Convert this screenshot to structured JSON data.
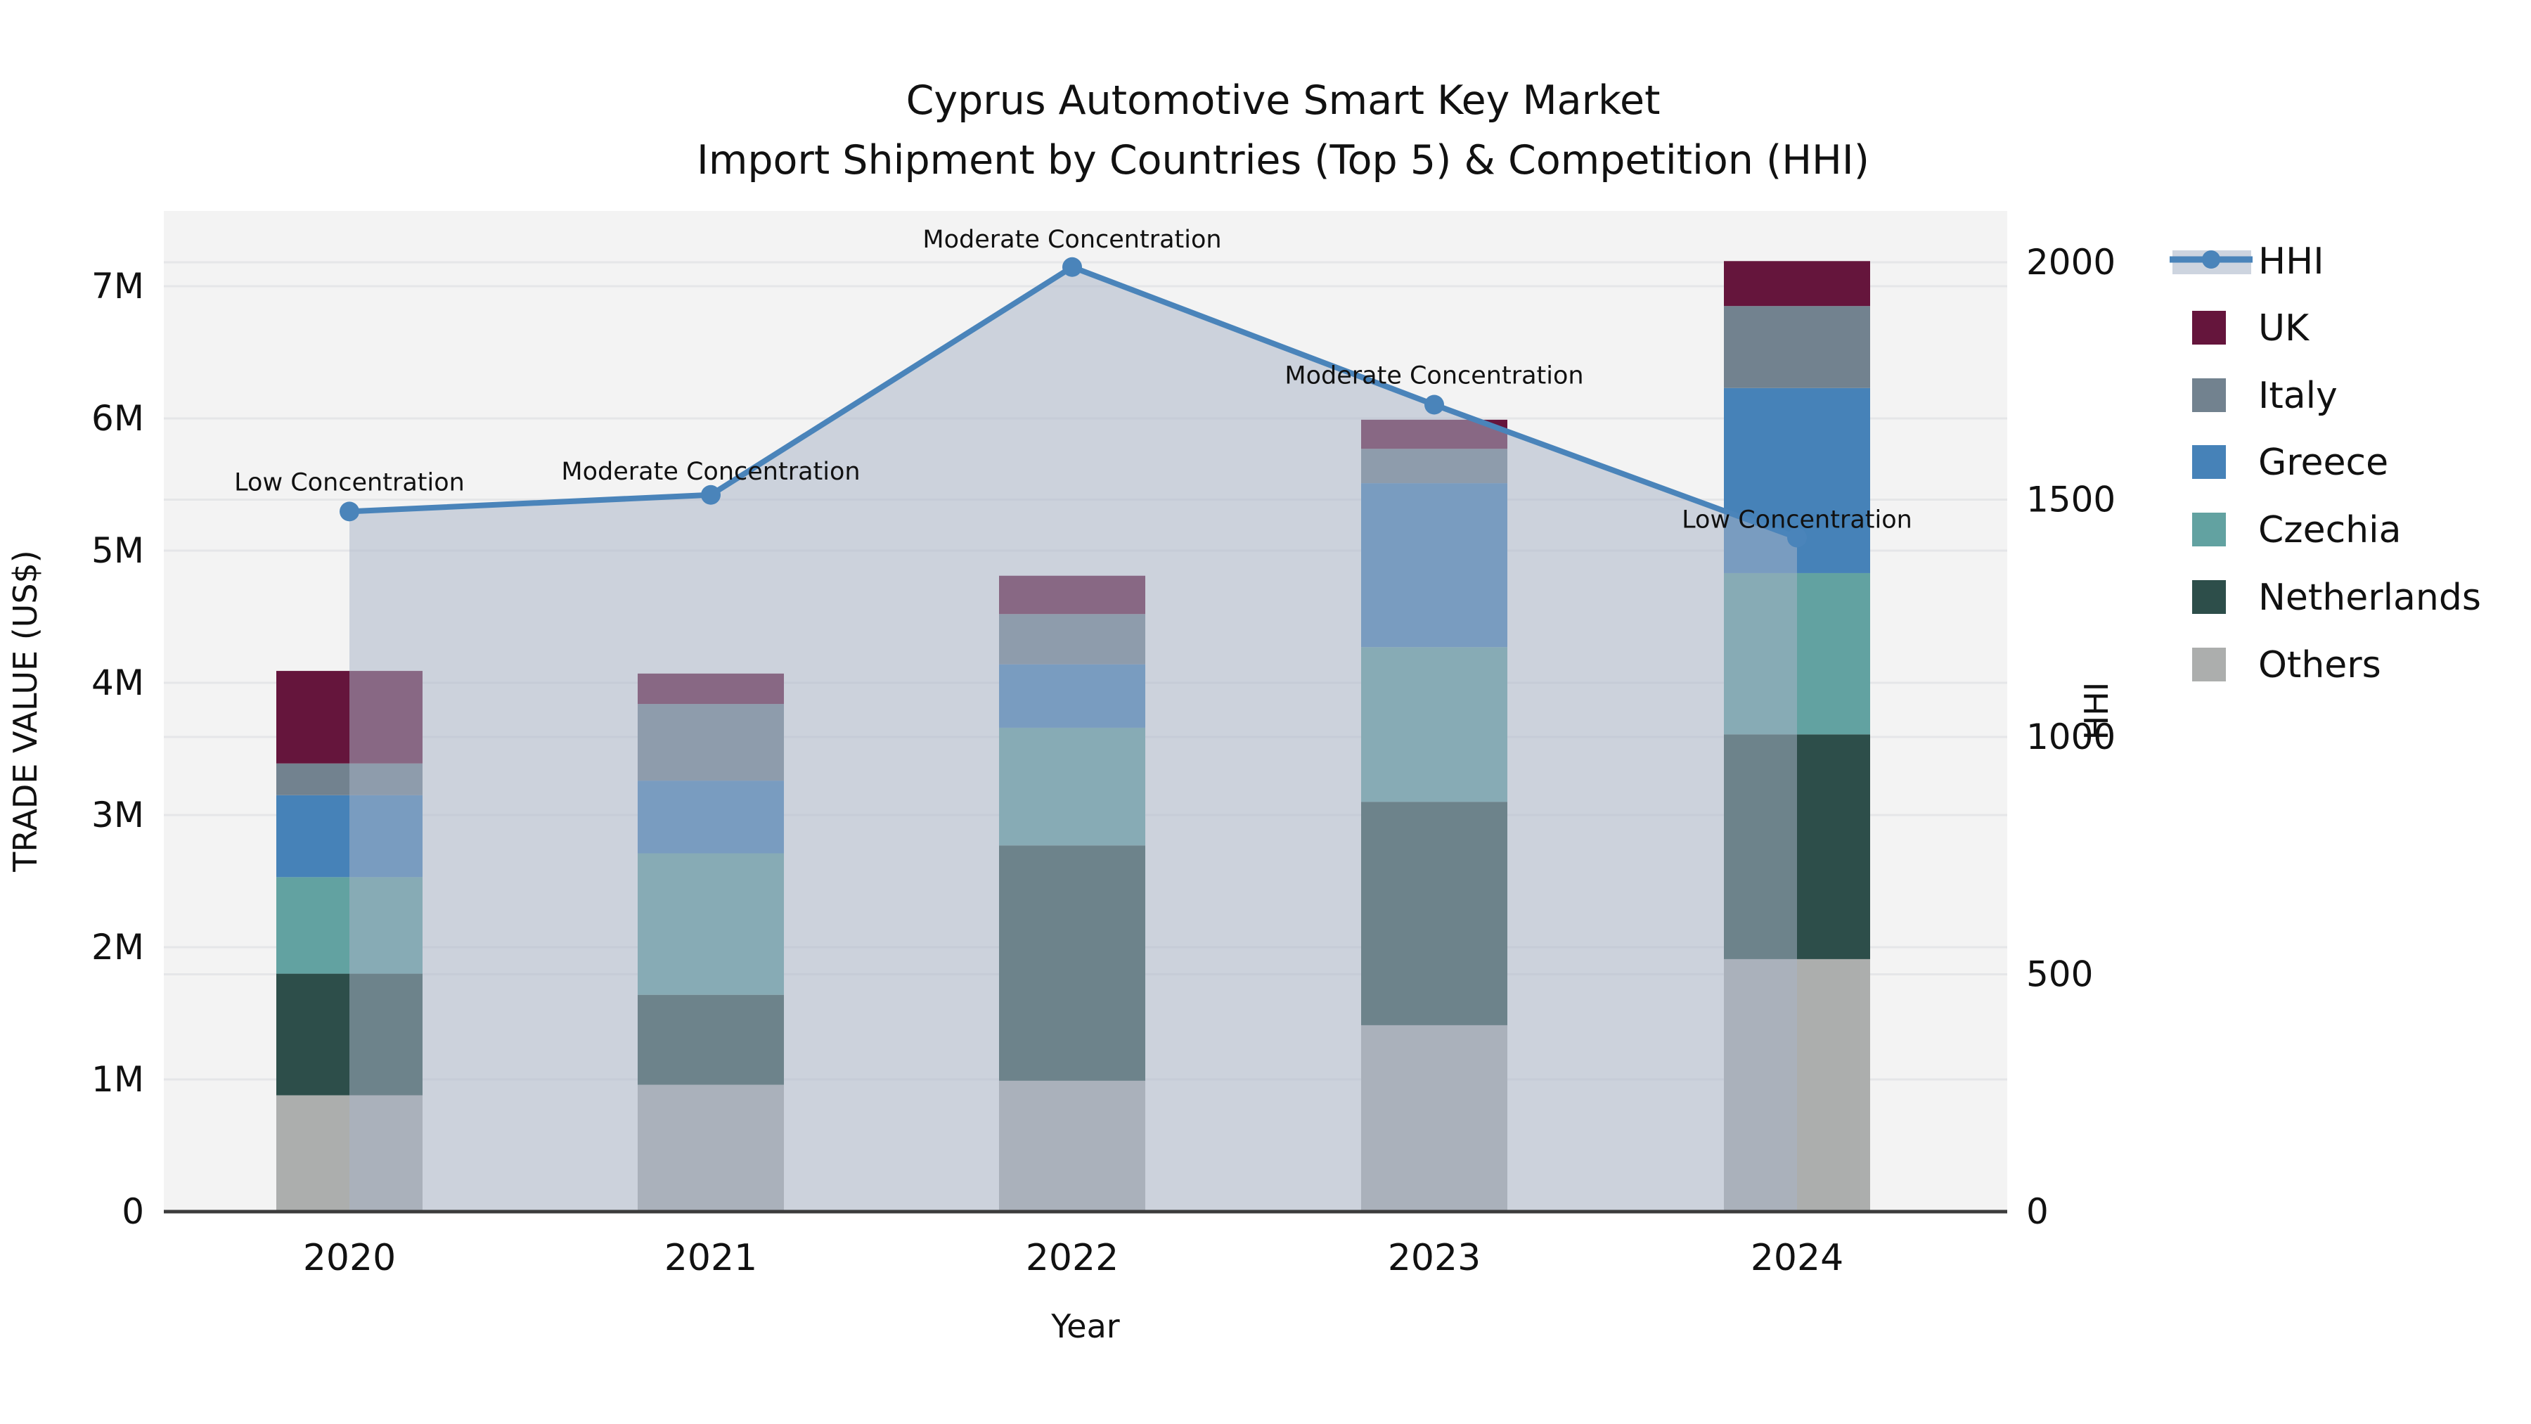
{
  "chart_data": {
    "type": "composed-stacked-bar-and-line",
    "title_line1": "Cyprus Automotive Smart Key Market",
    "title_line2": "Import Shipment by Countries (Top 5) & Competition (HHI)",
    "x_axis": {
      "label": "Year",
      "categories": [
        "2020",
        "2021",
        "2022",
        "2023",
        "2024"
      ]
    },
    "y_left": {
      "label": "TRADE VALUE (US$)",
      "ticks": [
        "0",
        "1M",
        "2M",
        "3M",
        "4M",
        "5M",
        "6M",
        "7M"
      ],
      "units": "millions of US$",
      "ylim": [
        0,
        7.57
      ],
      "grid": true
    },
    "y_right": {
      "label": "HHI",
      "ticks": [
        "0",
        "500",
        "1000",
        "1500",
        "2000"
      ],
      "tick_step": 500,
      "ylim": [
        0,
        2108
      ],
      "grid": true
    },
    "bars": {
      "type": "stacked-bar",
      "stack_order_bottom_to_top": [
        "Others",
        "Netherlands",
        "Czechia",
        "Greece",
        "Italy",
        "UK"
      ],
      "values_unit": "millions of US$",
      "series": [
        {
          "name": "UK",
          "color": "#65153c",
          "values": [
            0.7,
            0.23,
            0.29,
            0.22,
            0.34
          ]
        },
        {
          "name": "Italy",
          "color": "#72828f",
          "values": [
            0.24,
            0.58,
            0.38,
            0.26,
            0.62
          ]
        },
        {
          "name": "Greece",
          "color": "#4682b8",
          "values": [
            0.62,
            0.55,
            0.48,
            1.24,
            1.4
          ]
        },
        {
          "name": "Czechia",
          "color": "#62a2a1",
          "values": [
            0.73,
            1.07,
            0.89,
            1.17,
            1.22
          ]
        },
        {
          "name": "Netherlands",
          "color": "#2d4e4a",
          "values": [
            0.92,
            0.68,
            1.78,
            1.69,
            1.7
          ]
        },
        {
          "name": "Others",
          "color": "#acaead",
          "values": [
            0.88,
            0.96,
            0.99,
            1.41,
            1.91
          ]
        }
      ],
      "totals": [
        4.09,
        4.07,
        4.81,
        5.99,
        7.19
      ]
    },
    "hhi_line": {
      "name": "HHI",
      "color": "#4a84ba",
      "area_fill_color": "rgba(168,180,200,0.52)",
      "marker": "circle",
      "values": [
        1475,
        1510,
        1990,
        1700,
        1420
      ]
    },
    "annotations": [
      {
        "text": "Low Concentration",
        "year_index": 0,
        "dy": -30
      },
      {
        "text": "Moderate Concentration",
        "year_index": 1,
        "dy": -22
      },
      {
        "text": "Moderate Concentration",
        "year_index": 2,
        "dy": -28
      },
      {
        "text": "Moderate Concentration",
        "year_index": 3,
        "dy": -30
      },
      {
        "text": "Low Concentration",
        "year_index": 4,
        "dy": -14
      }
    ],
    "legend": {
      "position": "right",
      "entries": [
        "HHI",
        "UK",
        "Italy",
        "Greece",
        "Czechia",
        "Netherlands",
        "Others"
      ],
      "hhi_band_color": "#cdd4df"
    },
    "colors": {
      "plot_background": "#f3f3f3",
      "gridline": "#e5e6e8",
      "axis_line": "#3c3c3c",
      "text": "#111111"
    }
  }
}
